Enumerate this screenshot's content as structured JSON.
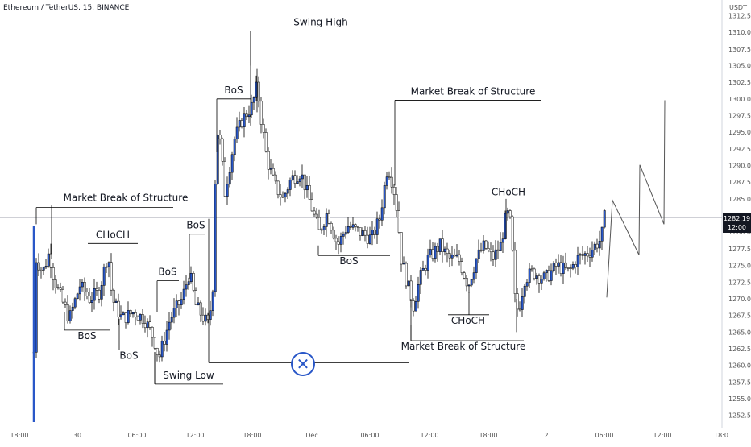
{
  "header": {
    "symbol_title": "Ethereum / TetherUS, 15, BINANCE",
    "currency": "USDT"
  },
  "price_tag": {
    "price": "1282.19",
    "countdown": "12:00"
  },
  "colors": {
    "up_candle": "#2957c8",
    "down_candle": "#ffffff",
    "outline": "#000000",
    "accent": "#2957c8",
    "axis_text": "#555555",
    "crosshair": "#b2b5be"
  },
  "icons": {
    "close": "close-circle-icon"
  },
  "chart_data": {
    "type": "candlestick",
    "title": "Ethereum / TetherUS, 15, BINANCE",
    "ylim": [
      1251,
      1314
    ],
    "y_ticks": [
      "1312.50",
      "1310.00",
      "1307.50",
      "1305.00",
      "1302.50",
      "1300.00",
      "1297.50",
      "1295.00",
      "1292.50",
      "1290.00",
      "1287.50",
      "1285.00",
      "1280.00",
      "1277.50",
      "1275.00",
      "1272.50",
      "1270.00",
      "1267.50",
      "1265.00",
      "1262.50",
      "1260.00",
      "1257.50",
      "1255.00",
      "1252.50"
    ],
    "x_ticks": [
      "18:00",
      "30",
      "06:00",
      "12:00",
      "18:00",
      "Dec",
      "06:00",
      "12:00",
      "18:00",
      "2",
      "06:00",
      "12:00",
      "18:0"
    ],
    "current_price": 1282.19,
    "annotations": [
      {
        "label": "Market Break of Structure",
        "price": 1283.7
      },
      {
        "label": "CHoCH",
        "price": 1278.3
      },
      {
        "label": "BoS",
        "price": 1265.3
      },
      {
        "label": "BoS",
        "price": 1262.3
      },
      {
        "label": "BoS",
        "price": 1272.7
      },
      {
        "label": "BoS",
        "price": 1279.7
      },
      {
        "label": "BoS",
        "price": 1300.0
      },
      {
        "label": "Swing High",
        "price": 1310.2
      },
      {
        "label": "Swing Low",
        "price": 1257.2
      },
      {
        "label": "Market Break of Structure",
        "price": 1299.8
      },
      {
        "label": "BoS",
        "price": 1276.5
      },
      {
        "label": "CHoCH",
        "price": 1284.7
      },
      {
        "label": "CHoCH",
        "price": 1267.6
      },
      {
        "label": "Market Break of Structure",
        "price": 1263.7
      }
    ],
    "projection": [
      1270.2,
      1284.8,
      1276.6,
      1290.1,
      1281.2,
      1299.8
    ]
  }
}
